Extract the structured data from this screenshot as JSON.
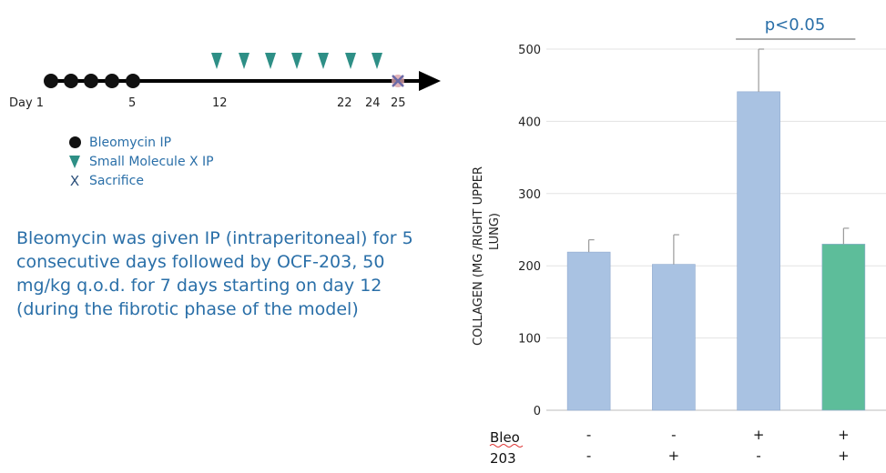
{
  "timeline": {
    "day_labels": [
      "Day 1",
      "5",
      "12",
      "22",
      "24",
      "25"
    ],
    "bleomycin_days": 5,
    "small_molecule_doses": 7
  },
  "legend": {
    "items": [
      {
        "symbol": "circle",
        "label": "Bleomycin IP"
      },
      {
        "symbol": "triangle",
        "label": "Small Molecule X IP"
      },
      {
        "symbol": "x",
        "label": "Sacrifice"
      }
    ]
  },
  "description": "Bleomycin was given IP (intraperitoneal) for 5 consecutive days followed by OCF-203, 50 mg/kg q.o.d. for 7 days starting on day 12 (during the fibrotic phase of the model)",
  "colors": {
    "bar_blue": "#a9c2e2",
    "bar_green": "#5dbd9a",
    "text_blue": "#2a6fa8"
  },
  "chart_data": {
    "type": "bar",
    "ylabel": "COLLAGEN (MG /RIGHT UPPER LUNG)",
    "ylabel_lines": [
      "COLLAGEN (MG /RIGHT UPPER",
      "LUNG)"
    ],
    "ylim": [
      0,
      500
    ],
    "yticks": [
      0,
      100,
      200,
      300,
      400,
      500
    ],
    "grid": true,
    "values": [
      219,
      202,
      441,
      230
    ],
    "errors": [
      17,
      41,
      59,
      22
    ],
    "colors": [
      "#a9c2e2",
      "#a9c2e2",
      "#a9c2e2",
      "#5dbd9a"
    ],
    "conditions": [
      {
        "label": "Bleo",
        "values": [
          "-",
          "-",
          "+",
          "+"
        ]
      },
      {
        "label": "203",
        "values": [
          "-",
          "+",
          "-",
          "+"
        ]
      }
    ],
    "significance": {
      "label": "p<0.05",
      "between": [
        2,
        3
      ]
    }
  }
}
